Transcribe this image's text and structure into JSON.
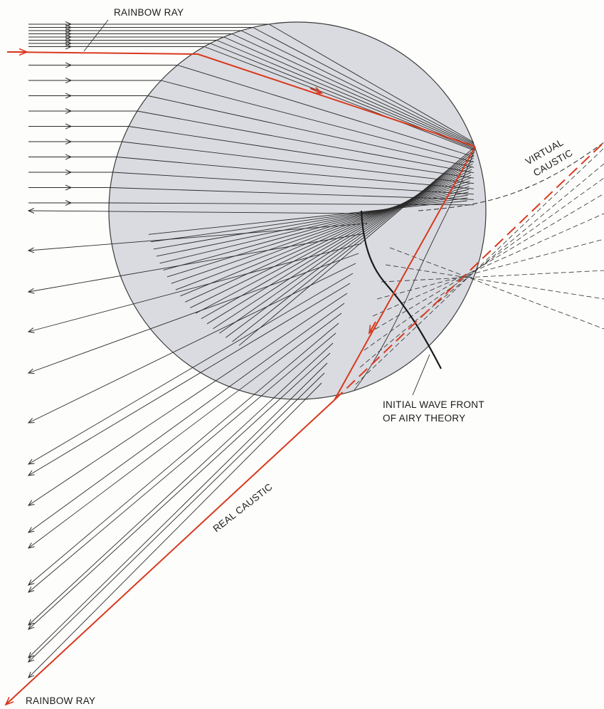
{
  "labels": {
    "rainbow_ray_top": "RAINBOW RAY",
    "rainbow_ray_bottom": "RAINBOW RAY",
    "virtual_caustic_line1": "VIRTUAL",
    "virtual_caustic_line2": "CAUSTIC",
    "real_caustic": "REAL CAUSTIC",
    "wave_front_line1": "INITIAL WAVE FRONT",
    "wave_front_line2": "OF AIRY THEORY"
  },
  "colors": {
    "droplet_fill": "#dadbe0",
    "ray": "#2b2b2b",
    "rainbow_ray": "#d8391f",
    "background": "#fdfdfb"
  }
}
